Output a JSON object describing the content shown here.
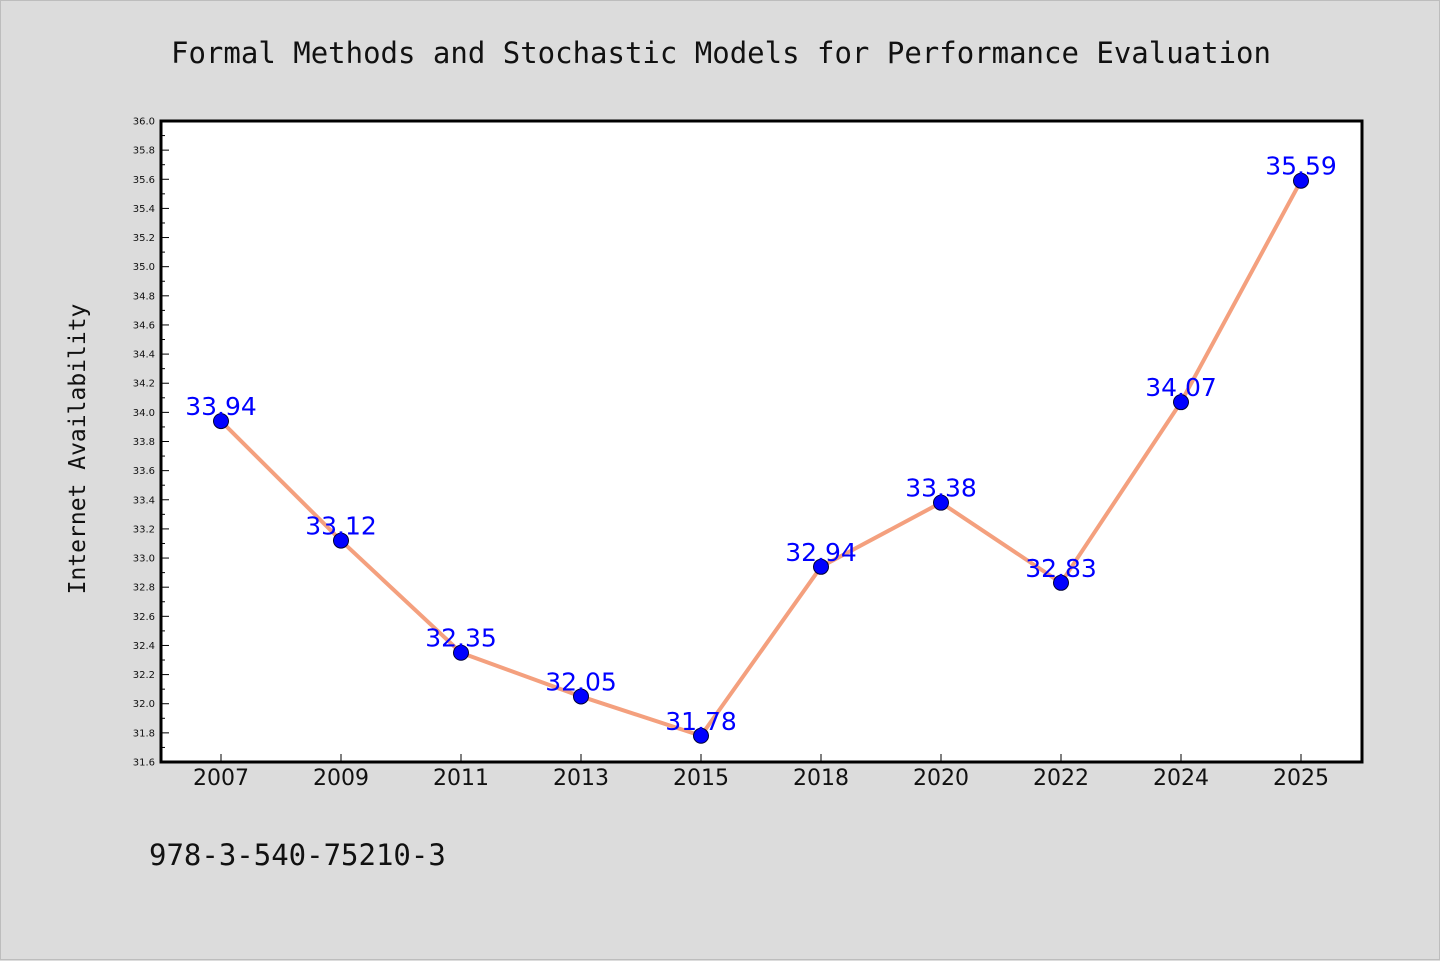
{
  "chart_data": {
    "type": "line",
    "title": "Formal Methods and Stochastic Models for Performance Evaluation",
    "ylabel": "Internet Availability",
    "xlabel": "",
    "categories": [
      "2007",
      "2009",
      "2011",
      "2013",
      "2015",
      "2018",
      "2020",
      "2022",
      "2024",
      "2025"
    ],
    "values": [
      33.94,
      33.12,
      32.35,
      32.05,
      31.78,
      32.94,
      33.38,
      32.83,
      34.07,
      35.59
    ],
    "data_labels": [
      "33.94",
      "33.12",
      "32.35",
      "32.05",
      "31.78",
      "32.94",
      "33.38",
      "32.83",
      "34.07",
      "35.59"
    ],
    "ylim": [
      31.6,
      36.0
    ],
    "yticks": [
      "31.6",
      "31.8",
      "32.0",
      "32.2",
      "32.4",
      "32.6",
      "32.8",
      "33.0",
      "33.2",
      "33.4",
      "33.6",
      "33.8",
      "34.0",
      "34.2",
      "34.4",
      "34.6",
      "34.8",
      "35.0",
      "35.2",
      "35.4",
      "35.6",
      "35.8",
      "36.0"
    ],
    "grid": false,
    "line_color": "#f4a07e",
    "marker_color": "#0000ff",
    "label_color": "#0000ff"
  },
  "footer": {
    "isbn": "978-3-540-75210-3"
  }
}
